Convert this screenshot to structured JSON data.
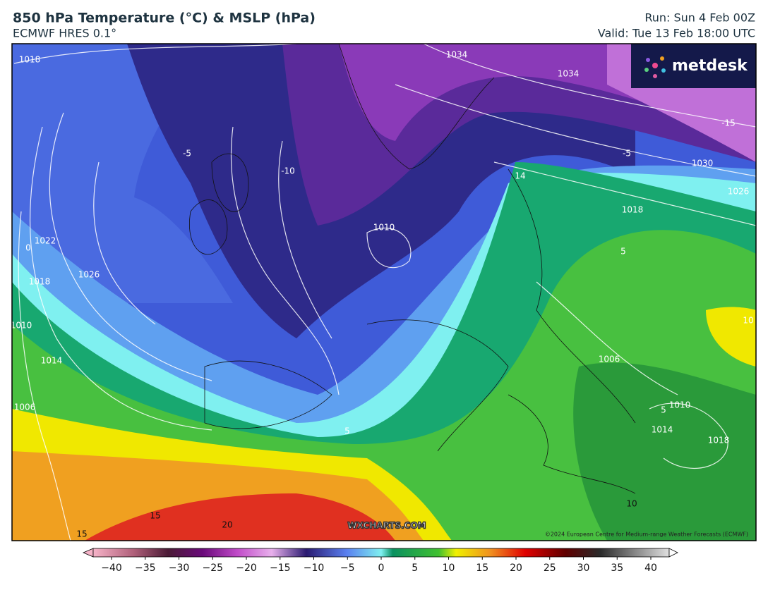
{
  "header": {
    "title": "850 hPa Temperature (°C) & MSLP (hPa)",
    "subtitle": "ECMWF HRES 0.1°",
    "run": "Run: Sun 4 Feb 00Z",
    "valid": "Valid: Tue 13 Feb 18:00 UTC"
  },
  "logo": "metdesk",
  "watermark": "WXCHARTS.COM",
  "copyright": "©2024 European Centre for Medium-range Weather Forecasts (ECMWF)",
  "map": {
    "contour_labels": [
      "1018",
      "1034",
      "1034",
      "-15",
      "-5",
      "-10",
      "-5",
      "1030",
      "14",
      "1026",
      "1018",
      "1010",
      "0",
      "1022",
      "5",
      "1018",
      "1026",
      "1010",
      "10",
      "1014",
      "1006",
      "1006",
      "5",
      "1010",
      "5",
      "1014",
      "1018",
      "10",
      "15",
      "15",
      "20"
    ]
  },
  "colorbar": {
    "ticks": [
      {
        "value": -40,
        "label": "−40"
      },
      {
        "value": -35,
        "label": "−35"
      },
      {
        "value": -30,
        "label": "−30"
      },
      {
        "value": -25,
        "label": "−25"
      },
      {
        "value": -20,
        "label": "−20"
      },
      {
        "value": -15,
        "label": "−15"
      },
      {
        "value": -10,
        "label": "−10"
      },
      {
        "value": -5,
        "label": "−5"
      },
      0,
      5,
      10,
      15,
      20,
      25,
      30,
      35,
      40
    ]
  }
}
